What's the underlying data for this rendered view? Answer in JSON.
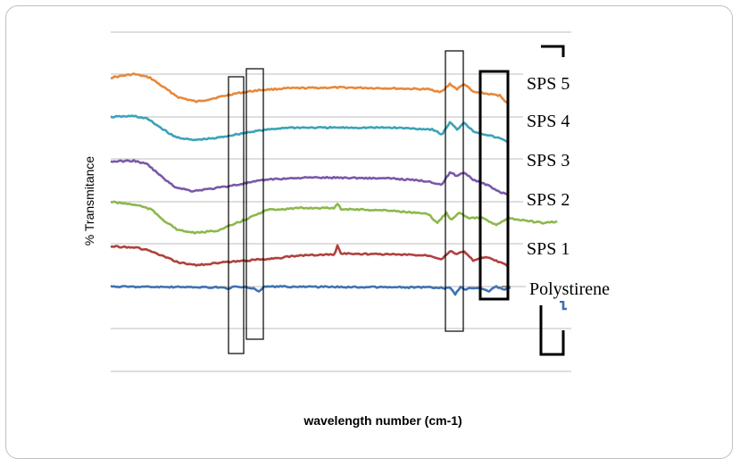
{
  "chart_data": {
    "type": "line",
    "title": "",
    "xlabel": "wavelength number  (cm-1)",
    "ylabel": "% Transmitance",
    "grid": "horizontal",
    "x_ticks_shown": false,
    "y_ticks_shown": false,
    "legend": "right",
    "series": [
      {
        "name": "SPS 5",
        "color": "#e8883a",
        "profile": "sps5"
      },
      {
        "name": "SPS 4",
        "color": "#3aa3b8",
        "profile": "sps4"
      },
      {
        "name": "SPS 3",
        "color": "#7a58a8",
        "profile": "sps3"
      },
      {
        "name": "SPS 2",
        "color": "#8cb84c",
        "profile": "sps2"
      },
      {
        "name": "SPS 1",
        "color": "#b0413d",
        "profile": "sps1"
      },
      {
        "name": "Polystirene",
        "color": "#3f72b0",
        "profile": "ps"
      }
    ],
    "annotations": [
      "highlight-box",
      "highlight-box",
      "highlight-box",
      "highlight-box-bold",
      "highlight-box-bold"
    ]
  }
}
